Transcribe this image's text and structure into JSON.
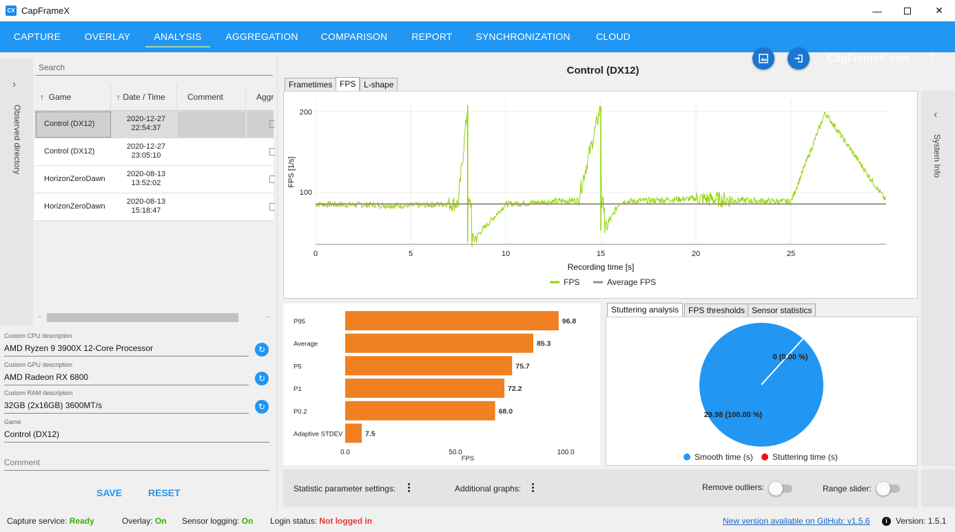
{
  "window": {
    "title": "CapFrameX",
    "icon_text": "CX"
  },
  "nav": {
    "items": [
      "CAPTURE",
      "OVERLAY",
      "ANALYSIS",
      "AGGREGATION",
      "COMPARISON",
      "REPORT",
      "SYNCHRONIZATION",
      "CLOUD"
    ],
    "active": "ANALYSIS",
    "site_link": "CapFrameX.com"
  },
  "left": {
    "observed_label": "Observed directory",
    "search_placeholder": "Search",
    "columns": [
      "Game",
      "Date / Time",
      "Comment",
      "Aggr"
    ],
    "rows": [
      {
        "game": "Control (DX12)",
        "date": "2020-12-27",
        "time": "22:54:37"
      },
      {
        "game": "Control (DX12)",
        "date": "2020-12-27",
        "time": "23:05:10"
      },
      {
        "game": "HorizonZeroDawn",
        "date": "2020-08-13",
        "time": "13:52:02"
      },
      {
        "game": "HorizonZeroDawn",
        "date": "2020-08-13",
        "time": "15:18:47"
      }
    ],
    "fields": {
      "cpu_label": "Custom CPU description",
      "cpu_value": "AMD Ryzen 9 3900X 12-Core Processor",
      "gpu_label": "Custom GPU description",
      "gpu_value": "AMD Radeon RX 6800",
      "ram_label": "Custom RAM description",
      "ram_value": "32GB (2x16GB) 3600MT/s",
      "game_label": "Game",
      "game_value": "Control (DX12)",
      "comment_placeholder": "Comment"
    },
    "save_label": "SAVE",
    "reset_label": "RESET"
  },
  "main": {
    "title": "Control (DX12)",
    "tabs": [
      "Frametimes",
      "FPS",
      "L-shape"
    ],
    "active_tab": "FPS",
    "system_info_label": "System Info",
    "stats_tabs": [
      "Stuttering analysis",
      "FPS thresholds",
      "Sensor statistics"
    ],
    "active_stats_tab": "Stuttering analysis"
  },
  "colors": {
    "accent": "#2196f3",
    "fps_line": "#8fd400",
    "avg_line": "#9e8a85",
    "bar": "#f08022",
    "smooth": "#2196f3",
    "stutter": "#f01010"
  },
  "chart_data": [
    {
      "type": "line",
      "title": "",
      "xlabel": "Recording time [s]",
      "ylabel": "FPS [1/s]",
      "xlim": [
        0,
        30
      ],
      "ylim": [
        35,
        215
      ],
      "xticks": [
        0,
        5,
        10,
        15,
        20,
        25
      ],
      "yticks": [
        100,
        200
      ],
      "grid": true,
      "legend": "bottom",
      "series": [
        {
          "name": "FPS",
          "x": [
            0,
            3,
            5,
            7.5,
            8,
            8.2,
            10,
            13.8,
            15,
            15.2,
            16,
            20,
            22,
            25,
            26.8,
            30
          ],
          "y": [
            85,
            84,
            83,
            86,
            208,
            38,
            85,
            90,
            207,
            52,
            88,
            92,
            90,
            88,
            199,
            89
          ]
        },
        {
          "name": "Average FPS",
          "x": [
            0,
            30
          ],
          "y": [
            85.3,
            85.3
          ]
        }
      ]
    },
    {
      "type": "bar",
      "orientation": "horizontal",
      "categories": [
        "P95",
        "Average",
        "P5",
        "P1",
        "P0.2",
        "Adaptive STDEV"
      ],
      "values": [
        96.8,
        85.3,
        75.7,
        72.2,
        68.0,
        7.5
      ],
      "value_labels": [
        "96.8",
        "85.3",
        "75.7",
        "72.2",
        "68.0",
        "7.5"
      ],
      "xlabel": "FPS",
      "xlim": [
        0,
        100
      ],
      "xticks": [
        "0.0",
        "50.0",
        "100.0"
      ]
    },
    {
      "type": "pie",
      "labels": [
        "Smooth time (s)",
        "Stuttering time (s)"
      ],
      "values": [
        29.98,
        0
      ],
      "slice_labels": [
        "29.98 (100.00 %)",
        "0 (0.00 %)"
      ],
      "legend": "bottom"
    }
  ],
  "bottom": {
    "stat_settings": "Statistic parameter settings:",
    "additional_graphs": "Additional graphs:",
    "remove_outliers": "Remove outliers:",
    "range_slider": "Range slider:"
  },
  "status": {
    "capture_label": "Capture service:",
    "capture_value": "Ready",
    "overlay_label": "Overlay:",
    "overlay_value": "On",
    "sensor_label": "Sensor logging:",
    "sensor_value": "On",
    "login_label": "Login status:",
    "login_value": "Not logged in",
    "update_link": "New version available on GitHub: v1.5.6",
    "version": "Version: 1.5.1"
  }
}
